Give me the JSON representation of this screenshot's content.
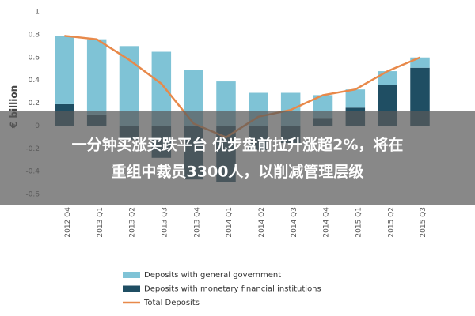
{
  "chart_data": {
    "type": "bar",
    "stacked": true,
    "y_label": "€ billion",
    "categories": [
      "2012 Q4",
      "2013 Q1",
      "2013 Q2",
      "2013 Q3",
      "2013 Q4",
      "2014 Q1",
      "2014 Q2",
      "2014 Q3",
      "2014 Q4",
      "2015 Q1",
      "2015 Q2",
      "2015 Q3"
    ],
    "series": [
      {
        "name": "Deposits with general government",
        "type": "bar",
        "color": "#7fc3d6",
        "values": [
          0.6,
          0.66,
          0.7,
          0.65,
          0.49,
          0.39,
          0.29,
          0.29,
          0.2,
          0.16,
          0.12,
          0.09
        ]
      },
      {
        "name": "Deposits with monetary financial institutions",
        "type": "bar",
        "color": "#1f4e63",
        "values": [
          0.19,
          0.1,
          -0.12,
          -0.28,
          -0.47,
          -0.49,
          -0.21,
          -0.15,
          0.07,
          0.16,
          0.36,
          0.51
        ]
      },
      {
        "name": "Total Deposits",
        "type": "line",
        "color": "#e8894a",
        "values": [
          0.79,
          0.76,
          0.58,
          0.37,
          0.02,
          -0.1,
          0.08,
          0.14,
          0.27,
          0.32,
          0.48,
          0.6
        ]
      }
    ],
    "ylim": [
      -0.6,
      1
    ],
    "yticks": [
      1,
      0.8,
      0.6,
      0.4,
      0.2,
      0,
      -0.2,
      -0.4,
      -0.6
    ],
    "grid": false
  },
  "caption": {
    "lines": [
      "一分钟买涨买跌平台 优步盘前拉升涨超2%，将在",
      "重组中裁员3300人，以削减管理层级"
    ]
  }
}
